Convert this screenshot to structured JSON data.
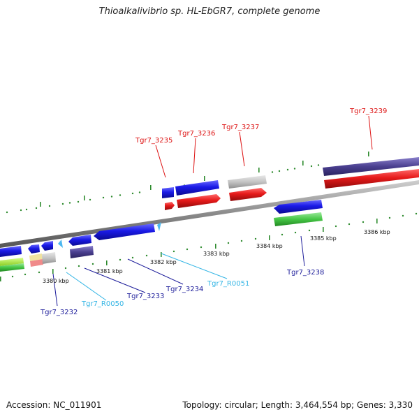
{
  "title": "Thioalkalivibrio sp. HL-EbGR7, complete genome",
  "footer": {
    "accession": "Accession: NC_011901",
    "summary": "Topology: circular; Length: 3,464,554 bp; Genes: 3,330"
  },
  "colors": {
    "forward_cds": "#1a1ae6",
    "reverse_cds": "#e61a1a",
    "misc": "#bdbdbd",
    "ncrna": "#4db8f0",
    "domain_purple": "#4a3f8f",
    "domain_green": "#45c645",
    "tick": "#2e8b2e",
    "backbone": "#8a8a8a",
    "upper_label": "#dd1111",
    "lower_label": "#1a1a99",
    "rna_label": "#33b5e5"
  },
  "kbp_labels": [
    "3380 kbp",
    "3381 kbp",
    "3382 kbp",
    "3383 kbp",
    "3384 kbp",
    "3385 kbp",
    "3386 kbp"
  ],
  "gene_labels": {
    "tgr7_3235": "Tgr7_3235",
    "tgr7_3236": "Tgr7_3236",
    "tgr7_3237": "Tgr7_3237",
    "tgr7_3239": "Tgr7_3239",
    "tgr7_3238": "Tgr7_3238",
    "tgr7_3232": "Tgr7_3232",
    "tgr7_r0050": "Tgr7_R0050",
    "tgr7_3233": "Tgr7_3233",
    "tgr7_3234": "Tgr7_3234",
    "tgr7_r0051": "Tgr7_R0051"
  }
}
